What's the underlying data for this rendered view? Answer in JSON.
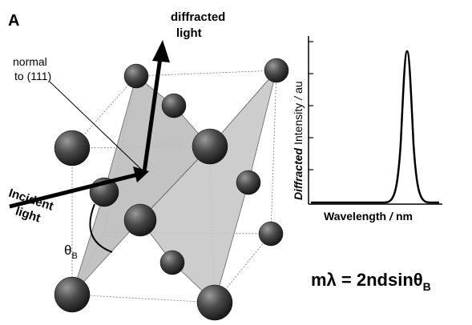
{
  "panel_label": "A",
  "diffracted_label": [
    "diffracted",
    "light"
  ],
  "normal_label": [
    "normal",
    "to (111)"
  ],
  "incident_label": [
    "Incident",
    "light"
  ],
  "angle_label": {
    "symbol": "θ",
    "sub": "B"
  },
  "spectrum": {
    "y_label": [
      "Diffracted",
      "Intensity",
      "/",
      "au"
    ],
    "x_label": [
      "Wavelength",
      "/",
      "nm"
    ]
  },
  "equation": {
    "main": "mλ = 2ndsinθ",
    "sub": "B"
  }
}
